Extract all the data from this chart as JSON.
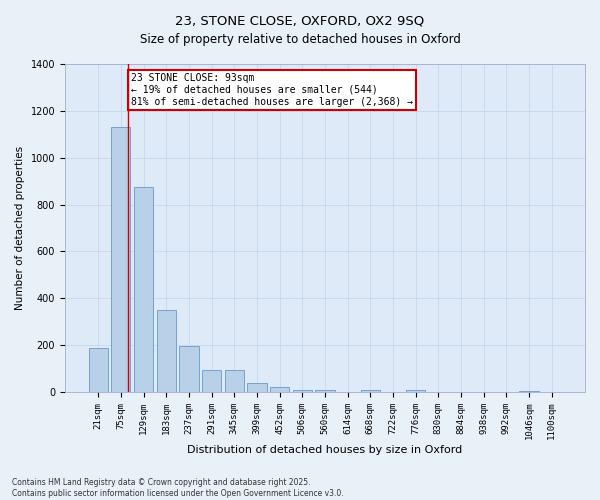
{
  "title1": "23, STONE CLOSE, OXFORD, OX2 9SQ",
  "title2": "Size of property relative to detached houses in Oxford",
  "xlabel": "Distribution of detached houses by size in Oxford",
  "ylabel": "Number of detached properties",
  "categories": [
    "21sqm",
    "75sqm",
    "129sqm",
    "183sqm",
    "237sqm",
    "291sqm",
    "345sqm",
    "399sqm",
    "452sqm",
    "506sqm",
    "560sqm",
    "614sqm",
    "668sqm",
    "722sqm",
    "776sqm",
    "830sqm",
    "884sqm",
    "938sqm",
    "992sqm",
    "1046sqm",
    "1100sqm"
  ],
  "values": [
    190,
    1130,
    875,
    350,
    195,
    93,
    93,
    40,
    20,
    10,
    10,
    0,
    8,
    0,
    8,
    0,
    0,
    0,
    0,
    3,
    0
  ],
  "bar_color": "#b8d0e8",
  "bar_edge_color": "#6699cc",
  "grid_color": "#c8daf0",
  "background_color": "#deeaf8",
  "fig_background": "#e8f0f8",
  "ylim": [
    0,
    1400
  ],
  "yticks": [
    0,
    200,
    400,
    600,
    800,
    1000,
    1200,
    1400
  ],
  "red_line_x": 1.3,
  "annotation_text": "23 STONE CLOSE: 93sqm\n← 19% of detached houses are smaller (544)\n81% of semi-detached houses are larger (2,368) →",
  "annotation_box_facecolor": "#ffffff",
  "annotation_border_color": "#cc0000",
  "red_line_color": "#cc0000",
  "footer1": "Contains HM Land Registry data © Crown copyright and database right 2025.",
  "footer2": "Contains public sector information licensed under the Open Government Licence v3.0.",
  "title_fontsize": 9.5,
  "subtitle_fontsize": 8.5,
  "xlabel_fontsize": 8,
  "ylabel_fontsize": 7.5,
  "tick_fontsize": 6.5,
  "annotation_fontsize": 7,
  "footer_fontsize": 5.5
}
